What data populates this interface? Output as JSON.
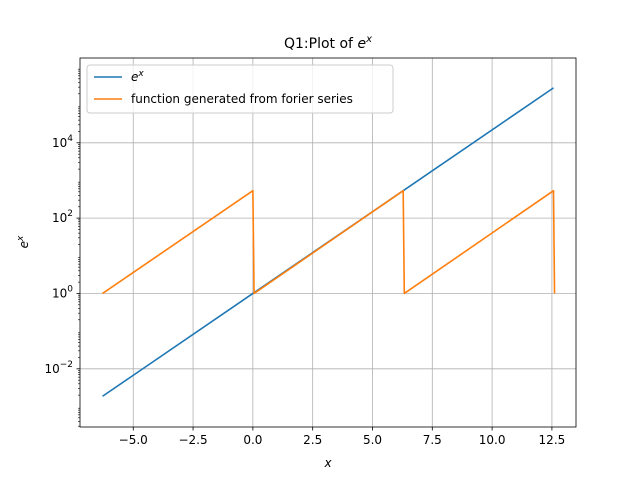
{
  "chart_data": {
    "type": "line",
    "title": "Q1:Plot of e^x",
    "title_main": "Q1:Plot of ",
    "title_math": "e",
    "title_sup": "x",
    "xlabel": "x",
    "ylabel_base": "e",
    "ylabel_sup": "x",
    "xlim": [
      -7.226,
      13.507
    ],
    "ylim_log10": [
      -3.545,
      6.251
    ],
    "y_scale": "log",
    "grid": true,
    "legend_position": "top-left",
    "x_ticks": [
      {
        "value": -5.0,
        "label": "−5.0"
      },
      {
        "value": -2.5,
        "label": "−2.5"
      },
      {
        "value": 0.0,
        "label": "0.0"
      },
      {
        "value": 2.5,
        "label": "2.5"
      },
      {
        "value": 5.0,
        "label": "5.0"
      },
      {
        "value": 7.5,
        "label": "7.5"
      },
      {
        "value": 10.0,
        "label": "10.0"
      },
      {
        "value": 12.5,
        "label": "12.5"
      }
    ],
    "y_ticks": [
      {
        "exp": -2,
        "base": "10",
        "sup": "−2"
      },
      {
        "exp": 0,
        "base": "10",
        "sup": "0"
      },
      {
        "exp": 2,
        "base": "10",
        "sup": "2"
      },
      {
        "exp": 4,
        "base": "10",
        "sup": "4"
      }
    ],
    "series": [
      {
        "name_base": "e",
        "name_sup": "x",
        "color": "#1f77b4",
        "x": [
          -6.2832,
          12.5664
        ],
        "y": [
          0.001867,
          286751.3
        ]
      },
      {
        "name": "function generated from forier series",
        "color": "#ff7f0e",
        "x": [
          -6.2832,
          0.0,
          0.05,
          6.2832,
          6.33,
          12.5664,
          12.61
        ],
        "y": [
          1.0,
          535.49,
          1.0,
          535.49,
          1.0,
          535.49,
          1.0
        ]
      }
    ]
  }
}
